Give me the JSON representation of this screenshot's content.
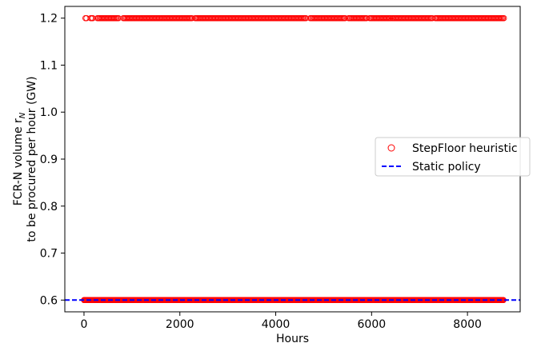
{
  "chart_data": {
    "type": "scatter",
    "title": "",
    "xlabel": "Hours",
    "ylabel_line1": "FCR-N volume r",
    "ylabel_subscript": "N",
    "ylabel_line2": "to be procured per hour (GW)",
    "xlim": [
      -400,
      9100
    ],
    "ylim": [
      0.575,
      1.225
    ],
    "xticks": [
      0,
      2000,
      4000,
      6000,
      8000
    ],
    "xtick_labels": [
      "0",
      "2000",
      "4000",
      "6000",
      "8000"
    ],
    "yticks": [
      0.6,
      0.7,
      0.8,
      0.9,
      1.0,
      1.1,
      1.2
    ],
    "ytick_labels": [
      "0.6",
      "0.7",
      "0.8",
      "0.9",
      "1.0",
      "1.1",
      "1.2"
    ],
    "grid": false,
    "legend_position": "center-right",
    "series": [
      {
        "name": "StepFloor heuristic",
        "kind": "scatter",
        "marker": "open-circle",
        "color": "#ff0000",
        "levels": [
          0.6,
          1.2
        ],
        "x_range": [
          0,
          8760
        ],
        "y_values_description_levels_only": true,
        "high_level_x_ranges": [
          [
            30,
            60
          ],
          [
            140,
            200
          ],
          [
            280,
            720
          ],
          [
            820,
            2250
          ],
          [
            2320,
            4650
          ],
          [
            4720,
            5450
          ],
          [
            5520,
            5900
          ],
          [
            5960,
            6400
          ],
          [
            6430,
            7280
          ],
          [
            7330,
            8760
          ]
        ],
        "low_level_x_ranges": [
          [
            0,
            8760
          ]
        ]
      },
      {
        "name": "Static policy",
        "kind": "line",
        "style": "dashed",
        "color": "#0000ff",
        "y": 0.6
      }
    ]
  }
}
